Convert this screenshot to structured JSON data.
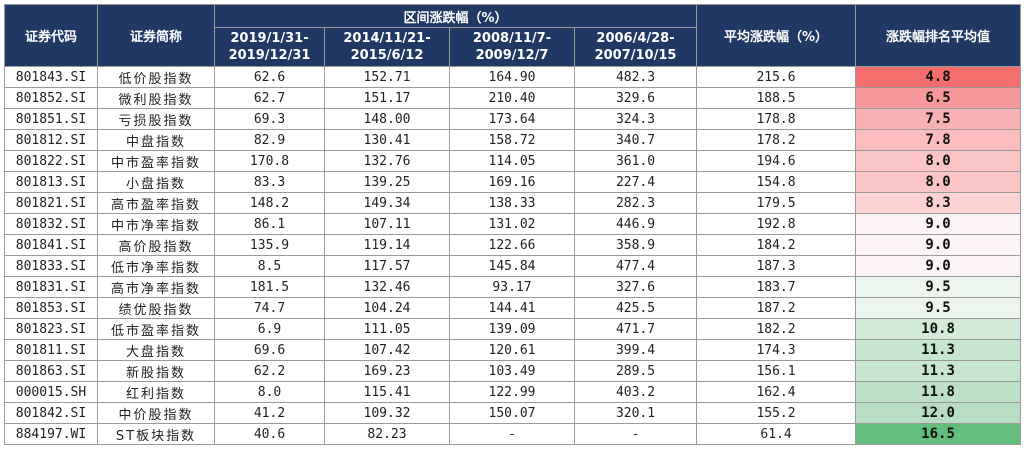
{
  "headers": {
    "code": "证券代码",
    "name": "证券简称",
    "interval_group": "区间涨跌幅（%）",
    "periods": [
      "2019/1/31-\n2019/12/31",
      "2014/11/21-\n2015/6/12",
      "2008/11/7-\n2009/12/7",
      "2006/4/28-\n2007/10/15"
    ],
    "avg": "平均涨跌幅（%）",
    "rank_avg": "涨跌幅排名平均值"
  },
  "rows": [
    {
      "code": "801843.SI",
      "name": "低价股指数",
      "p1": "62.6",
      "p2": "152.71",
      "p3": "164.90",
      "p4": "482.3",
      "avg": "215.6",
      "rank": "4.8",
      "color": "#f56e6e"
    },
    {
      "code": "801852.SI",
      "name": "微利股指数",
      "p1": "62.7",
      "p2": "151.17",
      "p3": "210.40",
      "p4": "329.6",
      "avg": "188.5",
      "rank": "6.5",
      "color": "#f7999a"
    },
    {
      "code": "801851.SI",
      "name": "亏损股指数",
      "p1": "69.3",
      "p2": "148.00",
      "p3": "173.64",
      "p4": "324.3",
      "avg": "178.8",
      "rank": "7.5",
      "color": "#f9b2b3"
    },
    {
      "code": "801812.SI",
      "name": "中盘指数",
      "p1": "82.9",
      "p2": "130.41",
      "p3": "158.72",
      "p4": "340.7",
      "avg": "178.2",
      "rank": "7.8",
      "color": "#fabcbd"
    },
    {
      "code": "801822.SI",
      "name": "中市盈率指数",
      "p1": "170.8",
      "p2": "132.76",
      "p3": "114.05",
      "p4": "361.0",
      "avg": "194.6",
      "rank": "8.0",
      "color": "#fbc5c6"
    },
    {
      "code": "801813.SI",
      "name": "小盘指数",
      "p1": "83.3",
      "p2": "139.25",
      "p3": "169.16",
      "p4": "227.4",
      "avg": "154.8",
      "rank": "8.0",
      "color": "#fbc5c6"
    },
    {
      "code": "801821.SI",
      "name": "高市盈率指数",
      "p1": "148.2",
      "p2": "149.34",
      "p3": "138.33",
      "p4": "282.3",
      "avg": "179.5",
      "rank": "8.3",
      "color": "#fcd2d3"
    },
    {
      "code": "801832.SI",
      "name": "中市净率指数",
      "p1": "86.1",
      "p2": "107.11",
      "p3": "131.02",
      "p4": "446.9",
      "avg": "192.8",
      "rank": "9.0",
      "color": "#fbf3f4"
    },
    {
      "code": "801841.SI",
      "name": "高价股指数",
      "p1": "135.9",
      "p2": "119.14",
      "p3": "122.66",
      "p4": "358.9",
      "avg": "184.2",
      "rank": "9.0",
      "color": "#fbf3f4"
    },
    {
      "code": "801833.SI",
      "name": "低市净率指数",
      "p1": "8.5",
      "p2": "117.57",
      "p3": "145.84",
      "p4": "477.4",
      "avg": "187.3",
      "rank": "9.0",
      "color": "#fbf3f4"
    },
    {
      "code": "801831.SI",
      "name": "高市净率指数",
      "p1": "181.5",
      "p2": "132.46",
      "p3": "93.17",
      "p4": "327.6",
      "avg": "183.7",
      "rank": "9.5",
      "color": "#ecf6ef"
    },
    {
      "code": "801853.SI",
      "name": "绩优股指数",
      "p1": "74.7",
      "p2": "104.24",
      "p3": "144.41",
      "p4": "425.5",
      "avg": "187.2",
      "rank": "9.5",
      "color": "#ecf6ef"
    },
    {
      "code": "801823.SI",
      "name": "低市盈率指数",
      "p1": "6.9",
      "p2": "111.05",
      "p3": "139.09",
      "p4": "471.7",
      "avg": "182.2",
      "rank": "10.8",
      "color": "#d2ebd9"
    },
    {
      "code": "801811.SI",
      "name": "大盘指数",
      "p1": "69.6",
      "p2": "107.42",
      "p3": "120.61",
      "p4": "399.4",
      "avg": "174.3",
      "rank": "11.3",
      "color": "#c7e6d0"
    },
    {
      "code": "801863.SI",
      "name": "新股指数",
      "p1": "62.2",
      "p2": "169.23",
      "p3": "103.49",
      "p4": "289.5",
      "avg": "156.1",
      "rank": "11.3",
      "color": "#c7e6d0"
    },
    {
      "code": "000015.SH",
      "name": "红利指数",
      "p1": "8.0",
      "p2": "115.41",
      "p3": "122.99",
      "p4": "403.2",
      "avg": "162.4",
      "rank": "11.8",
      "color": "#bde1c7"
    },
    {
      "code": "801842.SI",
      "name": "中价股指数",
      "p1": "41.2",
      "p2": "109.32",
      "p3": "150.07",
      "p4": "320.1",
      "avg": "155.2",
      "rank": "12.0",
      "color": "#b7dec2"
    },
    {
      "code": "884197.WI",
      "name": "ST板块指数",
      "p1": "40.6",
      "p2": "82.23",
      "p3": "-",
      "p4": "-",
      "avg": "61.4",
      "rank": "16.5",
      "color": "#63be7b"
    }
  ]
}
